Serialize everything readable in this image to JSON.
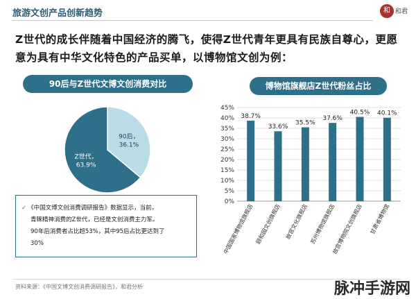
{
  "header": {
    "title": "旅游文创产品创新趋势",
    "logo_glyph": "和",
    "logo_text": "和君"
  },
  "headline": "Z世代的成长伴随着中国经济的腾飞，使得Z世代青年更具有民族自尊心，更愿意为具有中华文化特色的产品买单，以博物馆文创为例：",
  "left_panel": {
    "title": "90后与Z世代文博文创消费对比"
  },
  "right_panel": {
    "title": "博物馆旗舰店Z世代粉丝占比"
  },
  "note": {
    "check": "✓",
    "lines": [
      "《中国文博文创消费调研报告》数据显示，当前，",
      "青睐精神消费的Z世代，已经是文创消费主力军。",
      "90年后消费者占比超53%，其中95后占比更达到了",
      "30%"
    ]
  },
  "footnote": "资料来源：《中国文博文创消费调研报告》，和君分析",
  "watermark": "脉冲手游网",
  "colors": {
    "primary": "#2e6f8a",
    "dark_slice": "#2e6f8a",
    "light_slice": "#b9dce6",
    "bar": "#2e6f8a"
  },
  "chart_data": [
    {
      "type": "pie",
      "title": "90后与Z世代文博文创消费对比",
      "slices": [
        {
          "label": "90后",
          "value": 36.1,
          "value_label": "36.1%",
          "color": "#b9dce6"
        },
        {
          "label": "Z世代",
          "value": 63.9,
          "value_label": "63.9%",
          "color": "#2e6f8a"
        }
      ]
    },
    {
      "type": "bar",
      "title": "博物馆旗舰店Z世代粉丝占比",
      "categories": [
        "中国国家博物馆旗舰店",
        "颐和园文创旗舰店",
        "故宫文化旗舰店",
        "苏州博物馆旗舰店",
        "故宫博物院文创旗舰店",
        "甘肃省博物馆"
      ],
      "values": [
        38.7,
        33.6,
        35.5,
        37.6,
        40.5,
        40.1
      ],
      "value_labels": [
        "38.7%",
        "33.6%",
        "35.5%",
        "37.6%",
        "40.5%",
        "40.1%"
      ],
      "ylim": [
        0,
        45
      ],
      "yticks": [
        "0%",
        "5%",
        "10%",
        "15%",
        "20%",
        "25%",
        "30%",
        "35%",
        "40%",
        "45%"
      ],
      "grid": true
    }
  ]
}
